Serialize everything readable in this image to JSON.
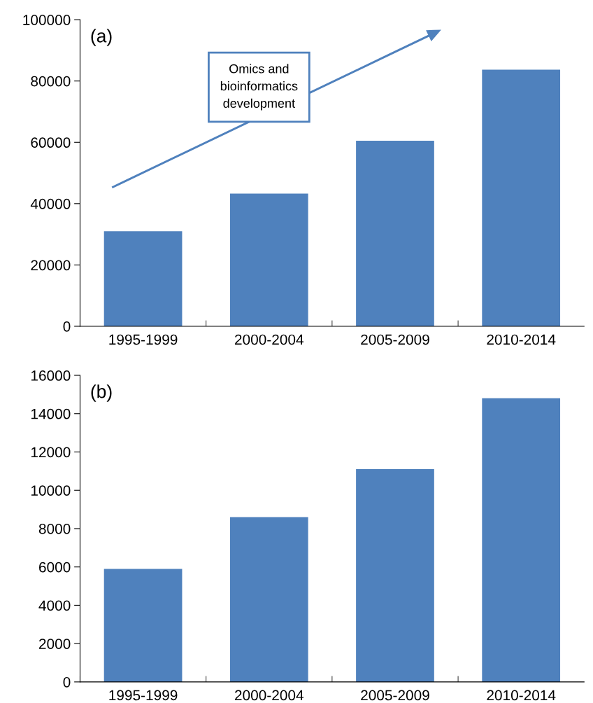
{
  "chart_data": [
    {
      "type": "bar",
      "title": "(a)",
      "categories": [
        "1995-1999",
        "2000-2004",
        "2005-2009",
        "2010-2014"
      ],
      "values": [
        31000,
        43300,
        60500,
        83700
      ],
      "color": "#4f81bd",
      "ylim": [
        0,
        100000
      ],
      "yticks": [
        0,
        20000,
        40000,
        60000,
        80000,
        100000
      ],
      "grid": false,
      "annotations": [
        "Omics and\nbioinformatics\ndevelopment"
      ]
    },
    {
      "type": "bar",
      "title": "(b)",
      "categories": [
        "1995-1999",
        "2000-2004",
        "2005-2009",
        "2010-2014"
      ],
      "values": [
        5900,
        8600,
        11100,
        14800
      ],
      "color": "#4f81bd",
      "ylim": [
        0,
        16000
      ],
      "yticks": [
        0,
        2000,
        4000,
        6000,
        8000,
        10000,
        12000,
        14000,
        16000
      ],
      "grid": false
    }
  ]
}
